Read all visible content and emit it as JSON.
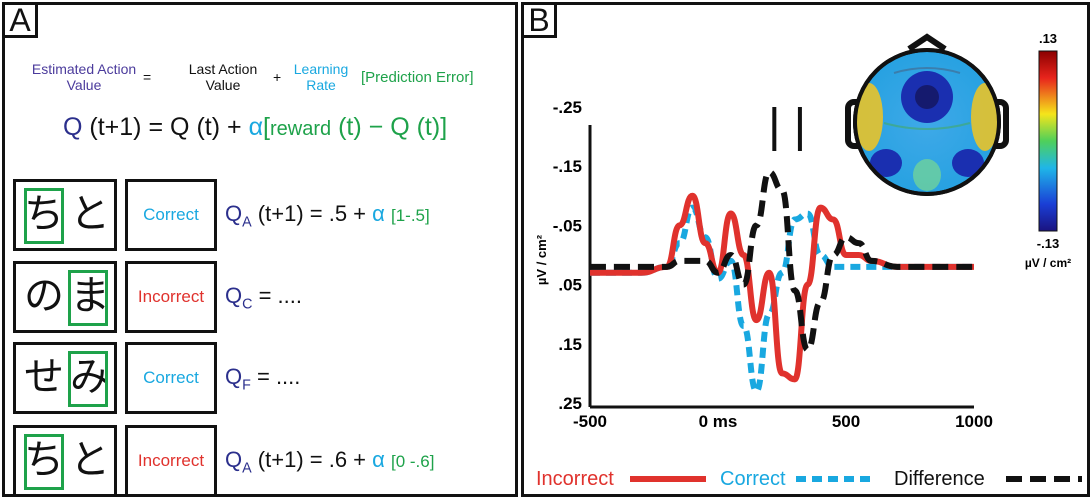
{
  "panelA": {
    "label": "A",
    "word_eq": {
      "estimated": "Estimated Action\nValue",
      "equals": "=",
      "last": "Last Action\nValue",
      "plus": "+",
      "learning": "Learning\nRate",
      "pe": "[Prediction Error]"
    },
    "formula": {
      "q": "Q",
      "t1": "(t+1)",
      "eq": "=",
      "q2": "Q",
      "t": "(t)",
      "plus": "+",
      "alpha": "α",
      "open": "[",
      "reward": "reward",
      "rt": "(t)",
      "minus": "−",
      "q3": "Q",
      "t3": "(t)",
      "close": "]"
    },
    "trials": [
      {
        "kana": [
          "ち",
          "と"
        ],
        "selected": 0,
        "feedback": "Correct",
        "feedback_color": "#19a8e0",
        "q": "Q",
        "sub": "A",
        "rest": "(t+1) = .5 +",
        "alpha": "α",
        "bracket": "[1-.5]"
      },
      {
        "kana": [
          "の",
          "ま"
        ],
        "selected": 1,
        "feedback": "Incorrect",
        "feedback_color": "#e0322d",
        "q": "Q",
        "sub": "C",
        "rest": "= ....",
        "alpha": "",
        "bracket": ""
      },
      {
        "kana": [
          "せ",
          "み"
        ],
        "selected": 1,
        "feedback": "Correct",
        "feedback_color": "#19a8e0",
        "q": "Q",
        "sub": "F",
        "rest": "= ....",
        "alpha": "",
        "bracket": ""
      },
      {
        "kana": [
          "ち",
          "と"
        ],
        "selected": 0,
        "feedback": "Incorrect",
        "feedback_color": "#e0322d",
        "q": "Q",
        "sub": "A",
        "rest": "(t+1) = .6 +",
        "alpha": "α",
        "bracket": "[0 -.6]"
      }
    ]
  },
  "panelB": {
    "label": "B",
    "colorbar": {
      "top": ".13",
      "bottom": "-.13",
      "unit": "µV / cm²"
    },
    "legend": [
      {
        "name": "Incorrect",
        "color": "#e0322d"
      },
      {
        "name": "Correct",
        "color": "#19a8e0"
      },
      {
        "name": "Difference",
        "color": "#111111"
      }
    ]
  },
  "chart_data": {
    "type": "line",
    "ylabel": "µV / cm²",
    "xlim": [
      -500,
      1000
    ],
    "ylim": [
      -0.25,
      0.25
    ],
    "y_inverted": true,
    "xticks": [
      -500,
      0,
      500,
      1000
    ],
    "xtick_labels": [
      "-500",
      "0 ms",
      "500",
      "1000"
    ],
    "yticks": [
      -0.25,
      -0.15,
      -0.05,
      0.05,
      0.15,
      0.25
    ],
    "ytick_labels": [
      "-.25",
      "-.15",
      "-.05",
      ".05",
      ".15",
      ".25"
    ],
    "markers_x": [
      220,
      320
    ],
    "x": [
      -500,
      -400,
      -300,
      -200,
      -150,
      -100,
      -50,
      0,
      50,
      100,
      150,
      200,
      250,
      300,
      350,
      400,
      450,
      500,
      550,
      600,
      700,
      800,
      900,
      1000
    ],
    "series": [
      {
        "name": "Incorrect",
        "values": [
          0.03,
          0.03,
          0.03,
          0.02,
          -0.05,
          -0.1,
          -0.02,
          0.03,
          -0.07,
          0.0,
          0.11,
          0.03,
          0.2,
          0.21,
          0.05,
          -0.08,
          -0.06,
          0.0,
          0.0,
          0.01,
          0.02,
          0.02,
          0.02,
          0.02
        ]
      },
      {
        "name": "Correct",
        "values": [
          0.03,
          0.03,
          0.03,
          0.02,
          -0.02,
          -0.08,
          -0.03,
          0.04,
          0.01,
          0.12,
          0.23,
          0.1,
          0.03,
          -0.06,
          -0.07,
          0.0,
          0.02,
          0.02,
          0.02,
          0.02,
          0.02,
          0.02,
          0.02,
          0.02
        ]
      },
      {
        "name": "Difference",
        "values": [
          0.02,
          0.02,
          0.02,
          0.02,
          0.01,
          0.01,
          0.01,
          0.03,
          0.0,
          0.05,
          -0.05,
          -0.14,
          -0.11,
          0.06,
          0.16,
          0.08,
          0.0,
          -0.03,
          -0.02,
          0.01,
          0.02,
          0.02,
          0.02,
          0.02
        ]
      }
    ]
  }
}
